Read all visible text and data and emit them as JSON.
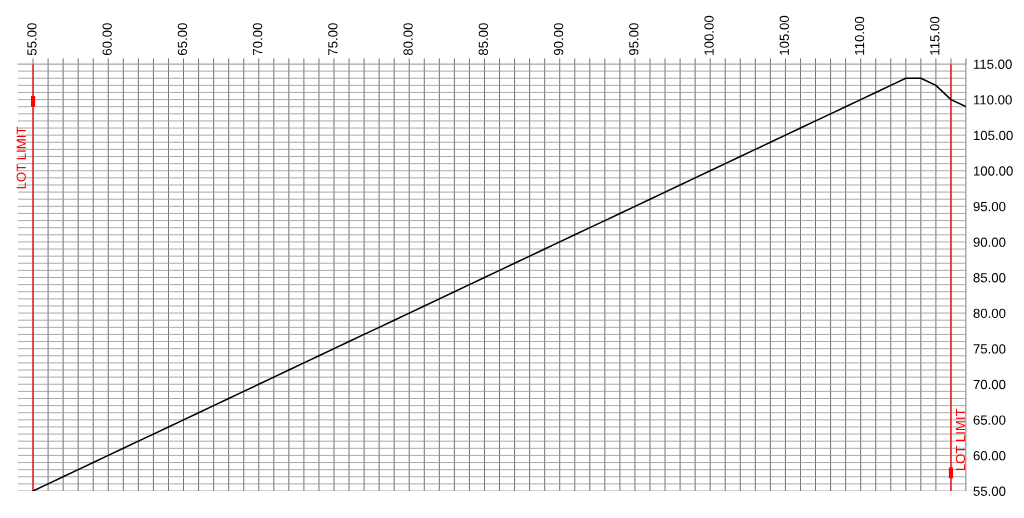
{
  "chart_data": {
    "type": "line",
    "categories": [
      "55.00",
      null,
      null,
      null,
      null,
      "60.00",
      null,
      null,
      null,
      null,
      "65.00",
      null,
      null,
      null,
      null,
      "70.00",
      null,
      null,
      null,
      null,
      "75.00",
      null,
      null,
      null,
      null,
      "80.00",
      null,
      null,
      null,
      null,
      "85.00",
      null,
      null,
      null,
      null,
      "90.00",
      null,
      null,
      null,
      null,
      "95.00",
      null,
      null,
      null,
      null,
      "100.00",
      null,
      null,
      null,
      null,
      "105.00",
      null,
      null,
      null,
      null,
      "110.00",
      null,
      null,
      null,
      null,
      "115.00",
      null,
      null
    ],
    "series": [
      {
        "color": "#000000",
        "values": [
          55,
          56,
          57,
          58,
          59,
          60,
          61,
          62,
          63,
          64,
          65,
          66,
          67,
          68,
          69,
          70,
          71,
          72,
          73,
          74,
          75,
          76,
          77,
          78,
          79,
          80,
          81,
          82,
          83,
          84,
          85,
          86,
          87,
          88,
          89,
          90,
          91,
          92,
          93,
          94,
          95,
          96,
          97,
          98,
          99,
          100,
          101,
          102,
          103,
          104,
          105,
          106,
          107,
          108,
          109,
          110,
          111,
          112,
          113,
          113,
          112,
          110,
          109
        ]
      }
    ],
    "ylim": [
      55,
      115
    ],
    "yticks": [
      {
        "value": 55,
        "label": "55.00"
      },
      {
        "value": 56,
        "label": null
      },
      {
        "value": 57,
        "label": null
      },
      {
        "value": 58,
        "label": null
      },
      {
        "value": 59,
        "label": null
      },
      {
        "value": 60,
        "label": "60.00"
      },
      {
        "value": 61,
        "label": null
      },
      {
        "value": 62,
        "label": null
      },
      {
        "value": 63,
        "label": null
      },
      {
        "value": 64,
        "label": null
      },
      {
        "value": 65,
        "label": "65.00"
      },
      {
        "value": 66,
        "label": null
      },
      {
        "value": 67,
        "label": null
      },
      {
        "value": 68,
        "label": null
      },
      {
        "value": 69,
        "label": null
      },
      {
        "value": 70,
        "label": "70.00"
      },
      {
        "value": 71,
        "label": null
      },
      {
        "value": 72,
        "label": null
      },
      {
        "value": 73,
        "label": null
      },
      {
        "value": 74,
        "label": null
      },
      {
        "value": 75,
        "label": "75.00"
      },
      {
        "value": 76,
        "label": null
      },
      {
        "value": 77,
        "label": null
      },
      {
        "value": 78,
        "label": null
      },
      {
        "value": 79,
        "label": null
      },
      {
        "value": 80,
        "label": "80.00"
      },
      {
        "value": 81,
        "label": null
      },
      {
        "value": 82,
        "label": null
      },
      {
        "value": 83,
        "label": null
      },
      {
        "value": 84,
        "label": null
      },
      {
        "value": 85,
        "label": "85.00"
      },
      {
        "value": 86,
        "label": null
      },
      {
        "value": 87,
        "label": null
      },
      {
        "value": 88,
        "label": null
      },
      {
        "value": 89,
        "label": null
      },
      {
        "value": 90,
        "label": "90.00"
      },
      {
        "value": 91,
        "label": null
      },
      {
        "value": 92,
        "label": null
      },
      {
        "value": 93,
        "label": null
      },
      {
        "value": 94,
        "label": null
      },
      {
        "value": 95,
        "label": "95.00"
      },
      {
        "value": 96,
        "label": null
      },
      {
        "value": 97,
        "label": null
      },
      {
        "value": 98,
        "label": null
      },
      {
        "value": 99,
        "label": null
      },
      {
        "value": 100,
        "label": "100.00"
      },
      {
        "value": 101,
        "label": null
      },
      {
        "value": 102,
        "label": null
      },
      {
        "value": 103,
        "label": null
      },
      {
        "value": 104,
        "label": null
      },
      {
        "value": 105,
        "label": "105.00"
      },
      {
        "value": 106,
        "label": null
      },
      {
        "value": 107,
        "label": null
      },
      {
        "value": 108,
        "label": null
      },
      {
        "value": 109,
        "label": null
      },
      {
        "value": 110,
        "label": "110.00"
      },
      {
        "value": 111,
        "label": null
      },
      {
        "value": 112,
        "label": null
      },
      {
        "value": 113,
        "label": null
      },
      {
        "value": 114,
        "label": null
      },
      {
        "value": 115,
        "label": "115.00"
      }
    ],
    "annotations": [
      "LOT LIMIT",
      "LOT LIMIT"
    ],
    "grid": true,
    "marker": "none",
    "line_style": "solid"
  }
}
